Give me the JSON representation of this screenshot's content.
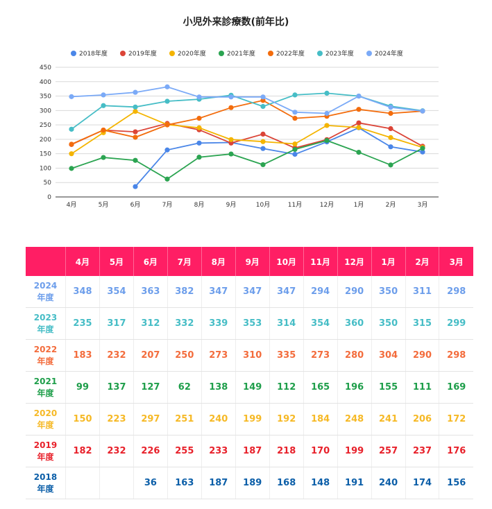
{
  "chart_data": {
    "type": "line",
    "title": "小児外来診療数(前年比)",
    "categories": [
      "4月",
      "5月",
      "6月",
      "7月",
      "8月",
      "9月",
      "10月",
      "11月",
      "12月",
      "1月",
      "2月",
      "3月"
    ],
    "ylim": [
      0,
      450
    ],
    "yticks": [
      0,
      50,
      100,
      150,
      200,
      250,
      300,
      350,
      400,
      450
    ],
    "grid": true,
    "legend_position": "top",
    "series": [
      {
        "name": "2018年度",
        "color": "#4a86e8",
        "values": [
          null,
          null,
          36,
          163,
          187,
          189,
          168,
          148,
          191,
          240,
          174,
          156
        ]
      },
      {
        "name": "2019年度",
        "color": "#db4437",
        "values": [
          182,
          232,
          226,
          255,
          233,
          187,
          218,
          170,
          199,
          257,
          237,
          176
        ]
      },
      {
        "name": "2020年度",
        "color": "#f4b400",
        "values": [
          150,
          223,
          297,
          251,
          240,
          199,
          192,
          184,
          248,
          241,
          206,
          172
        ]
      },
      {
        "name": "2021年度",
        "color": "#2ba451",
        "values": [
          99,
          137,
          127,
          62,
          138,
          149,
          112,
          165,
          196,
          155,
          111,
          169
        ]
      },
      {
        "name": "2022年度",
        "color": "#f36c0c",
        "values": [
          183,
          232,
          207,
          250,
          273,
          310,
          335,
          273,
          280,
          304,
          290,
          298
        ]
      },
      {
        "name": "2023年度",
        "color": "#46bdc6",
        "values": [
          235,
          317,
          312,
          332,
          339,
          353,
          314,
          354,
          360,
          350,
          315,
          299
        ]
      },
      {
        "name": "2024年度",
        "color": "#7baaf7",
        "values": [
          348,
          354,
          363,
          382,
          347,
          347,
          347,
          294,
          290,
          350,
          311,
          298
        ]
      }
    ]
  },
  "table": {
    "headers": [
      "4月",
      "5月",
      "6月",
      "7月",
      "8月",
      "9月",
      "10月",
      "11月",
      "12月",
      "1月",
      "2月",
      "3月"
    ],
    "header_color": "#ff1e64",
    "rows": [
      {
        "label": "2024年度",
        "color": "#6d9eeb",
        "values": [
          "348",
          "354",
          "363",
          "382",
          "347",
          "347",
          "347",
          "294",
          "290",
          "350",
          "311",
          "298"
        ]
      },
      {
        "label": "2023年度",
        "color": "#46bdc6",
        "values": [
          "235",
          "317",
          "312",
          "332",
          "339",
          "353",
          "314",
          "354",
          "360",
          "350",
          "315",
          "299"
        ]
      },
      {
        "label": "2022年度",
        "color": "#f36c3c",
        "values": [
          "183",
          "232",
          "207",
          "250",
          "273",
          "310",
          "335",
          "273",
          "280",
          "304",
          "290",
          "298"
        ]
      },
      {
        "label": "2021年度",
        "color": "#1e9e4a",
        "values": [
          "99",
          "137",
          "127",
          "62",
          "138",
          "149",
          "112",
          "165",
          "196",
          "155",
          "111",
          "169"
        ]
      },
      {
        "label": "2020年度",
        "color": "#f6b926",
        "values": [
          "150",
          "223",
          "297",
          "251",
          "240",
          "199",
          "192",
          "184",
          "248",
          "241",
          "206",
          "172"
        ]
      },
      {
        "label": "2019年度",
        "color": "#e8212b",
        "values": [
          "182",
          "232",
          "226",
          "255",
          "233",
          "187",
          "218",
          "170",
          "199",
          "257",
          "237",
          "176"
        ]
      },
      {
        "label": "2018年度",
        "color": "#0b5ea8",
        "values": [
          "",
          "",
          "36",
          "163",
          "187",
          "189",
          "168",
          "148",
          "191",
          "240",
          "174",
          "156"
        ]
      }
    ]
  }
}
